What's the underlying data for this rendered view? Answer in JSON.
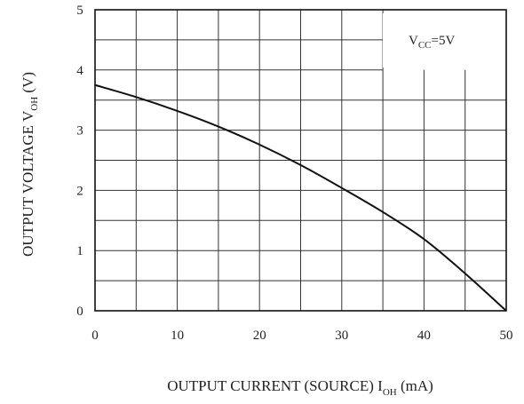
{
  "chart_data": {
    "type": "line",
    "xlabel": {
      "main": "OUTPUT CURRENT (SOURCE)  I",
      "sub": "OH",
      "unit": " (mA)"
    },
    "ylabel": {
      "main": "OUTPUT VOLTAGE  V",
      "sub": "OH",
      "unit": " (V)"
    },
    "annotation": {
      "main": "V",
      "sub": "CC",
      "rest": "=5V"
    },
    "xlim": [
      0,
      50
    ],
    "ylim": [
      0,
      5
    ],
    "x_ticks": [
      "0",
      "10",
      "20",
      "30",
      "40",
      "50"
    ],
    "y_ticks": [
      "0",
      "1",
      "2",
      "3",
      "4",
      "5"
    ],
    "grid": true,
    "series": [
      {
        "x": [
          0,
          5,
          10,
          15,
          20,
          25,
          30,
          35,
          40,
          45,
          50
        ],
        "y": [
          3.75,
          3.55,
          3.32,
          3.06,
          2.76,
          2.42,
          2.04,
          1.64,
          1.19,
          0.62,
          0.0
        ]
      }
    ]
  }
}
